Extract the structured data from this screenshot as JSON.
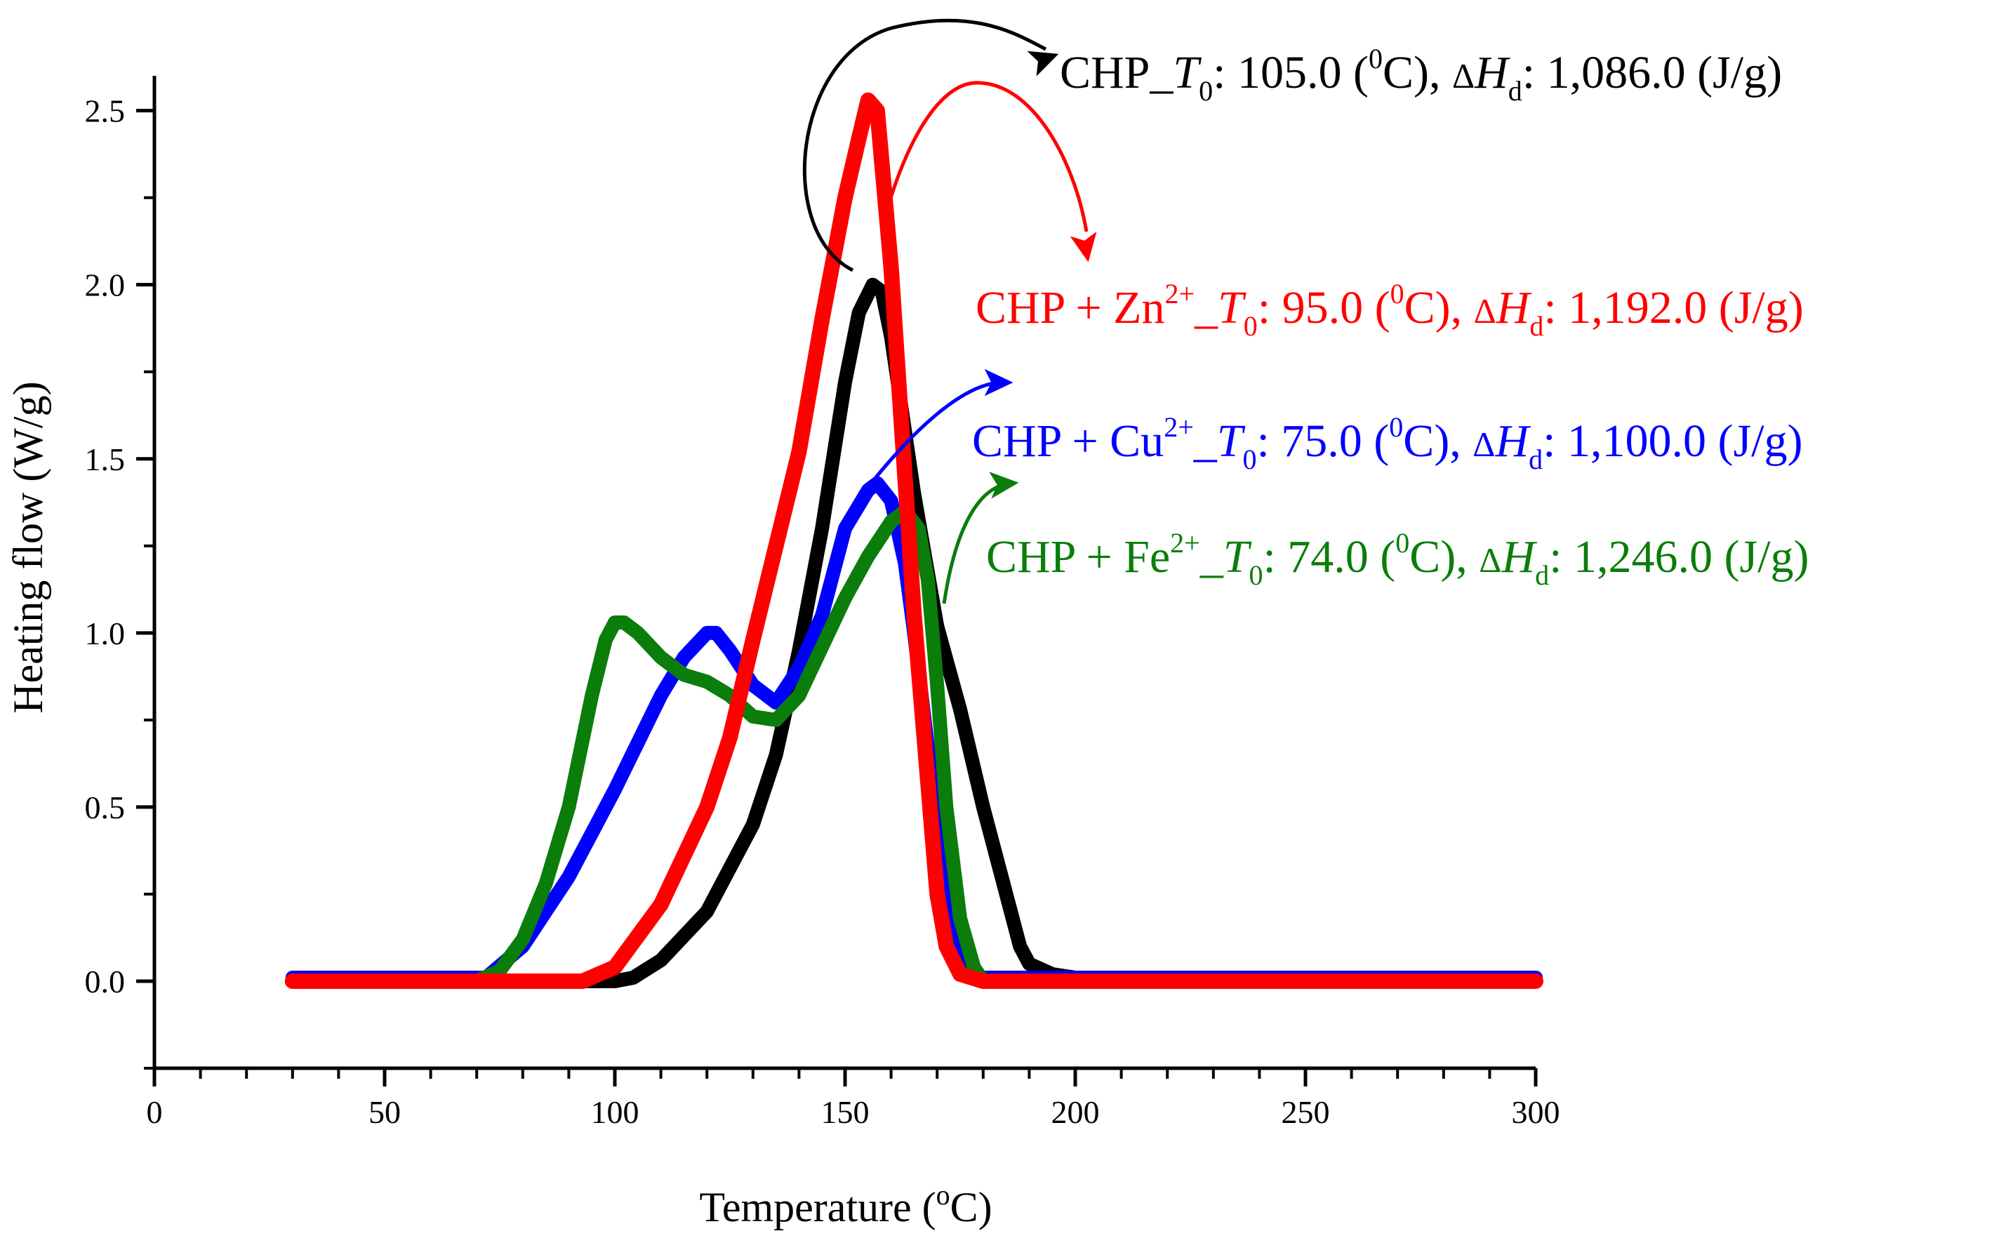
{
  "chart_data": {
    "type": "line",
    "title": "",
    "xlabel": "Temperature (°C)",
    "xlabel_parts": {
      "main": "Temperature (",
      "sup": "o",
      "tail": "C)"
    },
    "ylabel": "Heating flow (W/g)",
    "xlim": [
      0,
      300
    ],
    "ylim": [
      -0.25,
      2.6
    ],
    "xticks": [
      0,
      50,
      100,
      150,
      200,
      250,
      300
    ],
    "xtick_labels": [
      "0",
      "50",
      "100",
      "150",
      "200",
      "250",
      "300"
    ],
    "yticks": [
      0.0,
      0.5,
      1.0,
      1.5,
      2.0,
      2.5
    ],
    "ytick_labels": [
      "0.0",
      "0.5",
      "1.0",
      "1.5",
      "2.0",
      "2.5"
    ],
    "grid": false,
    "series": [
      {
        "name": "CHP",
        "color": "#000000",
        "x": [
          30,
          100,
          104,
          110,
          120,
          130,
          135,
          140,
          145,
          150,
          153,
          156,
          158,
          160,
          165,
          170,
          175,
          180,
          185,
          188,
          190,
          195,
          200,
          300
        ],
        "y": [
          0.0,
          0.0,
          0.01,
          0.06,
          0.2,
          0.45,
          0.65,
          0.95,
          1.3,
          1.72,
          1.92,
          2.0,
          1.98,
          1.85,
          1.4,
          1.02,
          0.78,
          0.5,
          0.25,
          0.1,
          0.05,
          0.02,
          0.01,
          0.01
        ],
        "annotation": {
          "prefix": "CHP_",
          "t0": "105.0",
          "dh": "1,086.0"
        }
      },
      {
        "name": "CHP + Zn2+",
        "color": "#ff0000",
        "x": [
          30,
          93,
          100,
          110,
          120,
          125,
          130,
          135,
          140,
          145,
          150,
          153,
          155,
          157,
          160,
          165,
          170,
          172,
          175,
          180,
          300
        ],
        "y": [
          0.0,
          0.0,
          0.04,
          0.22,
          0.5,
          0.7,
          0.98,
          1.25,
          1.52,
          1.9,
          2.25,
          2.42,
          2.53,
          2.5,
          2.05,
          1.05,
          0.25,
          0.1,
          0.02,
          0.0,
          0.0
        ],
        "annotation": {
          "prefix": "CHP + Zn",
          "ion": "2+",
          "t0": "95.0",
          "dh": "1,192.0"
        }
      },
      {
        "name": "CHP + Cu2+",
        "color": "#0000ff",
        "x": [
          30,
          72,
          80,
          90,
          100,
          110,
          115,
          120,
          122,
          125,
          130,
          135,
          140,
          145,
          150,
          155,
          157,
          160,
          163,
          165,
          170,
          173,
          176,
          178,
          180,
          300
        ],
        "y": [
          0.01,
          0.01,
          0.1,
          0.3,
          0.55,
          0.82,
          0.93,
          1.0,
          1.0,
          0.95,
          0.85,
          0.8,
          0.9,
          1.05,
          1.3,
          1.41,
          1.43,
          1.38,
          1.2,
          1.0,
          0.45,
          0.15,
          0.04,
          0.01,
          0.01,
          0.01
        ],
        "annotation": {
          "prefix": "CHP + Cu",
          "ion": "2+",
          "t0": "75.0",
          "dh": "1,100.0"
        }
      },
      {
        "name": "CHP + Fe2+",
        "color": "#0a7d0a",
        "x": [
          30,
          70,
          75,
          80,
          85,
          90,
          95,
          98,
          100,
          102,
          105,
          110,
          115,
          120,
          125,
          130,
          135,
          140,
          145,
          150,
          155,
          160,
          163,
          166,
          168,
          170,
          172,
          175,
          178,
          180,
          300
        ],
        "y": [
          0.0,
          0.0,
          0.03,
          0.12,
          0.28,
          0.5,
          0.82,
          0.98,
          1.03,
          1.03,
          1.0,
          0.93,
          0.88,
          0.86,
          0.82,
          0.76,
          0.75,
          0.82,
          0.96,
          1.1,
          1.22,
          1.32,
          1.35,
          1.3,
          1.15,
          0.85,
          0.5,
          0.18,
          0.04,
          0.0,
          0.0
        ],
        "annotation": {
          "prefix": "CHP + Fe",
          "ion": "2+",
          "t0": "74.0",
          "dh": "1,246.0"
        }
      }
    ]
  }
}
